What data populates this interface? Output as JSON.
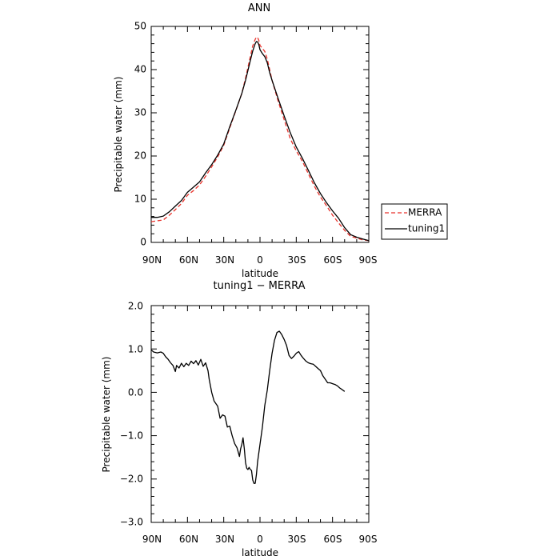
{
  "chart_data": [
    {
      "type": "line",
      "title": "ANN",
      "xlabel": "latitude",
      "ylabel": "Precipitable water (mm)",
      "xlim": [
        90,
        -90
      ],
      "ylim": [
        0,
        50
      ],
      "x_ticks": [
        90,
        60,
        30,
        0,
        -30,
        -60,
        -90
      ],
      "x_tick_labels": [
        "90N",
        "60N",
        "30N",
        "0",
        "30S",
        "60S",
        "90S"
      ],
      "y_ticks": [
        0,
        10,
        20,
        30,
        40,
        50
      ],
      "y_tick_labels": [
        "0",
        "10",
        "20",
        "30",
        "40",
        "50"
      ],
      "legend_position": "right, outside plot",
      "series": [
        {
          "name": "MERRA",
          "color": "#e8322b",
          "dash": "dashed",
          "points": [
            [
              90,
              4.8
            ],
            [
              85,
              5.0
            ],
            [
              80,
              5.2
            ],
            [
              75,
              6.3
            ],
            [
              70,
              7.6
            ],
            [
              65,
              9.0
            ],
            [
              60,
              10.9
            ],
            [
              55,
              12.0
            ],
            [
              50,
              13.3
            ],
            [
              45,
              15.3
            ],
            [
              40,
              17.5
            ],
            [
              35,
              19.8
            ],
            [
              30,
              22.5
            ],
            [
              25,
              26.5
            ],
            [
              20,
              30.5
            ],
            [
              15,
              34.5
            ],
            [
              12,
              38.0
            ],
            [
              10,
              40.5
            ],
            [
              8,
              43.0
            ],
            [
              6,
              45.5
            ],
            [
              4,
              47.0
            ],
            [
              3,
              47.5
            ],
            [
              2,
              47.4
            ],
            [
              1,
              46.8
            ],
            [
              0,
              45.6
            ],
            [
              -2,
              44.9
            ],
            [
              -4,
              44.2
            ],
            [
              -6,
              42.4
            ],
            [
              -8,
              40.0
            ],
            [
              -10,
              37.5
            ],
            [
              -15,
              32.7
            ],
            [
              -20,
              28.4
            ],
            [
              -25,
              24.0
            ],
            [
              -30,
              21.2
            ],
            [
              -35,
              18.8
            ],
            [
              -40,
              15.9
            ],
            [
              -45,
              13.0
            ],
            [
              -50,
              10.5
            ],
            [
              -55,
              8.5
            ],
            [
              -60,
              6.3
            ],
            [
              -65,
              4.5
            ],
            [
              -70,
              2.8
            ],
            [
              -75,
              1.4
            ],
            [
              -80,
              1.0
            ],
            [
              -85,
              0.6
            ],
            [
              -90,
              0.4
            ]
          ]
        },
        {
          "name": "tuning1",
          "color": "#000000",
          "dash": "solid",
          "points": [
            [
              90,
              5.8
            ],
            [
              85,
              5.8
            ],
            [
              80,
              6.1
            ],
            [
              75,
              7.1
            ],
            [
              70,
              8.4
            ],
            [
              65,
              9.7
            ],
            [
              60,
              11.6
            ],
            [
              55,
              12.8
            ],
            [
              50,
              14.0
            ],
            [
              45,
              16.1
            ],
            [
              40,
              18.0
            ],
            [
              35,
              20.2
            ],
            [
              30,
              22.8
            ],
            [
              25,
              26.8
            ],
            [
              20,
              30.6
            ],
            [
              15,
              34.5
            ],
            [
              12,
              37.5
            ],
            [
              10,
              39.8
            ],
            [
              8,
              42.1
            ],
            [
              6,
              44.3
            ],
            [
              4,
              46.0
            ],
            [
              3,
              46.5
            ],
            [
              2,
              46.4
            ],
            [
              1,
              45.8
            ],
            [
              0,
              44.6
            ],
            [
              -2,
              43.7
            ],
            [
              -4,
              43.0
            ],
            [
              -6,
              41.6
            ],
            [
              -8,
              39.3
            ],
            [
              -10,
              37.5
            ],
            [
              -15,
              33.3
            ],
            [
              -20,
              29.3
            ],
            [
              -25,
              25.4
            ],
            [
              -30,
              22.1
            ],
            [
              -35,
              19.5
            ],
            [
              -40,
              16.7
            ],
            [
              -45,
              13.8
            ],
            [
              -50,
              11.3
            ],
            [
              -55,
              9.2
            ],
            [
              -60,
              7.3
            ],
            [
              -65,
              5.6
            ],
            [
              -70,
              3.4
            ],
            [
              -75,
              1.8
            ],
            [
              -80,
              1.2
            ],
            [
              -85,
              0.8
            ],
            [
              -90,
              0.4
            ]
          ]
        }
      ]
    },
    {
      "type": "line",
      "title": "tuning1 − MERRA",
      "xlabel": "latitude",
      "ylabel": "Precipitable water (mm)",
      "xlim": [
        90,
        -90
      ],
      "ylim": [
        -3.0,
        2.0
      ],
      "x_ticks": [
        90,
        60,
        30,
        0,
        -30,
        -60,
        -90
      ],
      "x_tick_labels": [
        "90N",
        "60N",
        "30N",
        "0",
        "30S",
        "60S",
        "90S"
      ],
      "y_ticks": [
        -3.0,
        -2.0,
        -1.0,
        0.0,
        1.0,
        2.0
      ],
      "y_tick_labels": [
        "−3.0",
        "−2.0",
        "−1.0",
        "0.0",
        "1.0",
        "2.0"
      ],
      "series": [
        {
          "color": "#000000",
          "dash": "solid",
          "points": [
            [
              90,
              0.98
            ],
            [
              88,
              0.93
            ],
            [
              85,
              0.91
            ],
            [
              82,
              0.93
            ],
            [
              80,
              0.9
            ],
            [
              78,
              0.82
            ],
            [
              76,
              0.76
            ],
            [
              74,
              0.68
            ],
            [
              72,
              0.62
            ],
            [
              70,
              0.48
            ],
            [
              69,
              0.62
            ],
            [
              67,
              0.56
            ],
            [
              65,
              0.67
            ],
            [
              63,
              0.59
            ],
            [
              61,
              0.67
            ],
            [
              59,
              0.62
            ],
            [
              57,
              0.72
            ],
            [
              55,
              0.66
            ],
            [
              53,
              0.73
            ],
            [
              51,
              0.63
            ],
            [
              49,
              0.76
            ],
            [
              47,
              0.6
            ],
            [
              45,
              0.68
            ],
            [
              43,
              0.5
            ],
            [
              42,
              0.3
            ],
            [
              40,
              0.0
            ],
            [
              38,
              -0.2
            ],
            [
              35,
              -0.32
            ],
            [
              33,
              -0.6
            ],
            [
              31,
              -0.52
            ],
            [
              29,
              -0.55
            ],
            [
              27,
              -0.8
            ],
            [
              25,
              -0.78
            ],
            [
              23,
              -1.0
            ],
            [
              21,
              -1.18
            ],
            [
              19,
              -1.28
            ],
            [
              17,
              -1.48
            ],
            [
              16,
              -1.3
            ],
            [
              15,
              -1.2
            ],
            [
              14,
              -1.05
            ],
            [
              13,
              -1.3
            ],
            [
              12,
              -1.62
            ],
            [
              11,
              -1.75
            ],
            [
              10,
              -1.78
            ],
            [
              9,
              -1.73
            ],
            [
              8,
              -1.78
            ],
            [
              7,
              -1.8
            ],
            [
              6,
              -2.02
            ],
            [
              5,
              -2.1
            ],
            [
              4,
              -2.1
            ],
            [
              3,
              -1.9
            ],
            [
              2,
              -1.6
            ],
            [
              0,
              -1.2
            ],
            [
              -2,
              -0.8
            ],
            [
              -4,
              -0.3
            ],
            [
              -6,
              0.05
            ],
            [
              -8,
              0.5
            ],
            [
              -10,
              0.9
            ],
            [
              -12,
              1.2
            ],
            [
              -14,
              1.38
            ],
            [
              -16,
              1.41
            ],
            [
              -18,
              1.33
            ],
            [
              -20,
              1.22
            ],
            [
              -22,
              1.08
            ],
            [
              -24,
              0.85
            ],
            [
              -26,
              0.78
            ],
            [
              -28,
              0.83
            ],
            [
              -30,
              0.9
            ],
            [
              -32,
              0.94
            ],
            [
              -34,
              0.85
            ],
            [
              -36,
              0.78
            ],
            [
              -38,
              0.72
            ],
            [
              -40,
              0.68
            ],
            [
              -42,
              0.66
            ],
            [
              -44,
              0.65
            ],
            [
              -46,
              0.6
            ],
            [
              -48,
              0.55
            ],
            [
              -50,
              0.5
            ],
            [
              -52,
              0.38
            ],
            [
              -54,
              0.3
            ],
            [
              -56,
              0.22
            ],
            [
              -58,
              0.22
            ],
            [
              -60,
              0.2
            ],
            [
              -62,
              0.18
            ],
            [
              -64,
              0.15
            ],
            [
              -66,
              0.1
            ],
            [
              -68,
              0.06
            ],
            [
              -70,
              0.02
            ]
          ]
        }
      ]
    }
  ]
}
